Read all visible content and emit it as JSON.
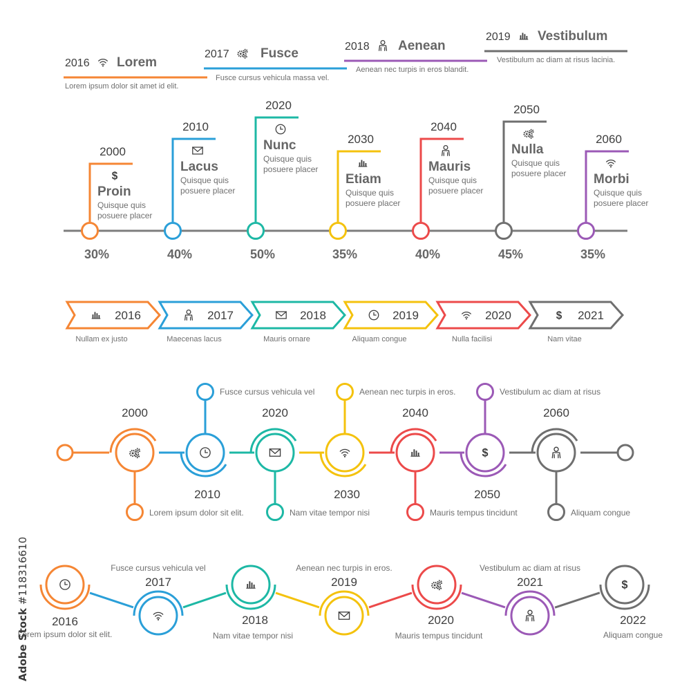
{
  "colors": [
    "#f58634",
    "#2a9fd8",
    "#1db8a5",
    "#f4c20d",
    "#ec4a4a",
    "#9b59b6",
    "#6f6f6f"
  ],
  "top_banner": [
    {
      "year": "2016",
      "icon": "wifi-icon",
      "title": "Lorem",
      "desc": "Lorem ipsum dolor sit amet id elit.",
      "color": "#f58634"
    },
    {
      "year": "2017",
      "icon": "gears-icon",
      "title": "Fusce",
      "desc": "Fusce cursus vehicula massa vel.",
      "color": "#2a9fd8"
    },
    {
      "year": "2018",
      "icon": "person-icon",
      "title": "Aenean",
      "desc": "Aenean nec turpis in eros blandit.",
      "color": "#9b59b6"
    },
    {
      "year": "2019",
      "icon": "bar-chart-icon",
      "title": "Vestibulum",
      "desc": "Vestibulum ac diam at risus lacinia.",
      "color": "#6f6f6f"
    }
  ],
  "flag_timeline": [
    {
      "year": "2000",
      "icon": "dollar-icon",
      "title": "Proin",
      "desc1": "Quisque quis",
      "desc2": "posuere placer",
      "percent": "30%",
      "color": "#f58634"
    },
    {
      "year": "2010",
      "icon": "mail-icon",
      "title": "Lacus",
      "desc1": "Quisque quis",
      "desc2": "posuere placer",
      "percent": "40%",
      "color": "#2a9fd8"
    },
    {
      "year": "2020",
      "icon": "clock-icon",
      "title": "Nunc",
      "desc1": "Quisque quis",
      "desc2": "posuere placer",
      "percent": "50%",
      "color": "#1db8a5"
    },
    {
      "year": "2030",
      "icon": "bar-chart-icon",
      "title": "Etiam",
      "desc1": "Quisque quis",
      "desc2": "posuere placer",
      "percent": "35%",
      "color": "#f4c20d"
    },
    {
      "year": "2040",
      "icon": "person-icon",
      "title": "Mauris",
      "desc1": "Quisque quis",
      "desc2": "posuere placer",
      "percent": "40%",
      "color": "#ec4a4a"
    },
    {
      "year": "2050",
      "icon": "gears-icon",
      "title": "Nulla",
      "desc1": "Quisque quis",
      "desc2": "posuere placer",
      "percent": "45%",
      "color": "#6f6f6f"
    },
    {
      "year": "2060",
      "icon": "wifi-icon",
      "title": "Morbi",
      "desc1": "Quisque quis",
      "desc2": "posuere placer",
      "percent": "35%",
      "color": "#9b59b6"
    }
  ],
  "arrow_timeline": [
    {
      "year": "2016",
      "icon": "bar-chart-icon",
      "label": "Nullam ex justo",
      "color": "#f58634"
    },
    {
      "year": "2017",
      "icon": "person-icon",
      "label": "Maecenas lacus",
      "color": "#2a9fd8"
    },
    {
      "year": "2018",
      "icon": "mail-icon",
      "label": "Mauris ornare",
      "color": "#1db8a5"
    },
    {
      "year": "2019",
      "icon": "clock-icon",
      "label": "Aliquam congue",
      "color": "#f4c20d"
    },
    {
      "year": "2020",
      "icon": "wifi-icon",
      "label": "Nulla facilisi",
      "color": "#ec4a4a"
    },
    {
      "year": "2021",
      "icon": "dollar-icon",
      "label": "Nam vitae",
      "color": "#6f6f6f"
    }
  ],
  "circle_timeline": [
    {
      "year": "2000",
      "icon": "gears-icon",
      "note": "Lorem ipsum dolor sit  elit.",
      "color": "#f58634"
    },
    {
      "year": "2010",
      "icon": "clock-icon",
      "note": "Fusce cursus vehicula  vel",
      "color": "#2a9fd8"
    },
    {
      "year": "2020",
      "icon": "mail-icon",
      "note": "Nam vitae tempor nisi",
      "color": "#1db8a5"
    },
    {
      "year": "2030",
      "icon": "wifi-icon",
      "note": "Aenean nec turpis in eros.",
      "color": "#f4c20d"
    },
    {
      "year": "2040",
      "icon": "bar-chart-icon",
      "note": "Mauris tempus tincidunt",
      "color": "#ec4a4a"
    },
    {
      "year": "2050",
      "icon": "dollar-icon",
      "note": "Vestibulum ac diam at risus",
      "color": "#9b59b6"
    },
    {
      "year": "2060",
      "icon": "person-icon",
      "note": "Aliquam congue",
      "color": "#6f6f6f"
    }
  ],
  "zigzag_timeline": [
    {
      "year": "2016",
      "icon": "clock-icon",
      "note": "Lorem ipsum dolor sit  elit.",
      "color": "#f58634"
    },
    {
      "year": "2017",
      "icon": "wifi-icon",
      "note": "Fusce cursus vehicula  vel",
      "color": "#2a9fd8"
    },
    {
      "year": "2018",
      "icon": "bar-chart-icon",
      "note": "Nam vitae tempor nisi",
      "color": "#1db8a5"
    },
    {
      "year": "2019",
      "icon": "mail-icon",
      "note": "Aenean nec turpis in eros.",
      "color": "#f4c20d"
    },
    {
      "year": "2020",
      "icon": "gears-icon",
      "note": "Mauris tempus tincidunt",
      "color": "#ec4a4a"
    },
    {
      "year": "2021",
      "icon": "person-icon",
      "note": "Vestibulum ac diam at risus",
      "color": "#9b59b6"
    },
    {
      "year": "2022",
      "icon": "dollar-icon",
      "note": "Aliquam congue",
      "color": "#6f6f6f"
    }
  ],
  "watermark": {
    "brand": "Adobe Stock",
    "id": "#118316610"
  }
}
